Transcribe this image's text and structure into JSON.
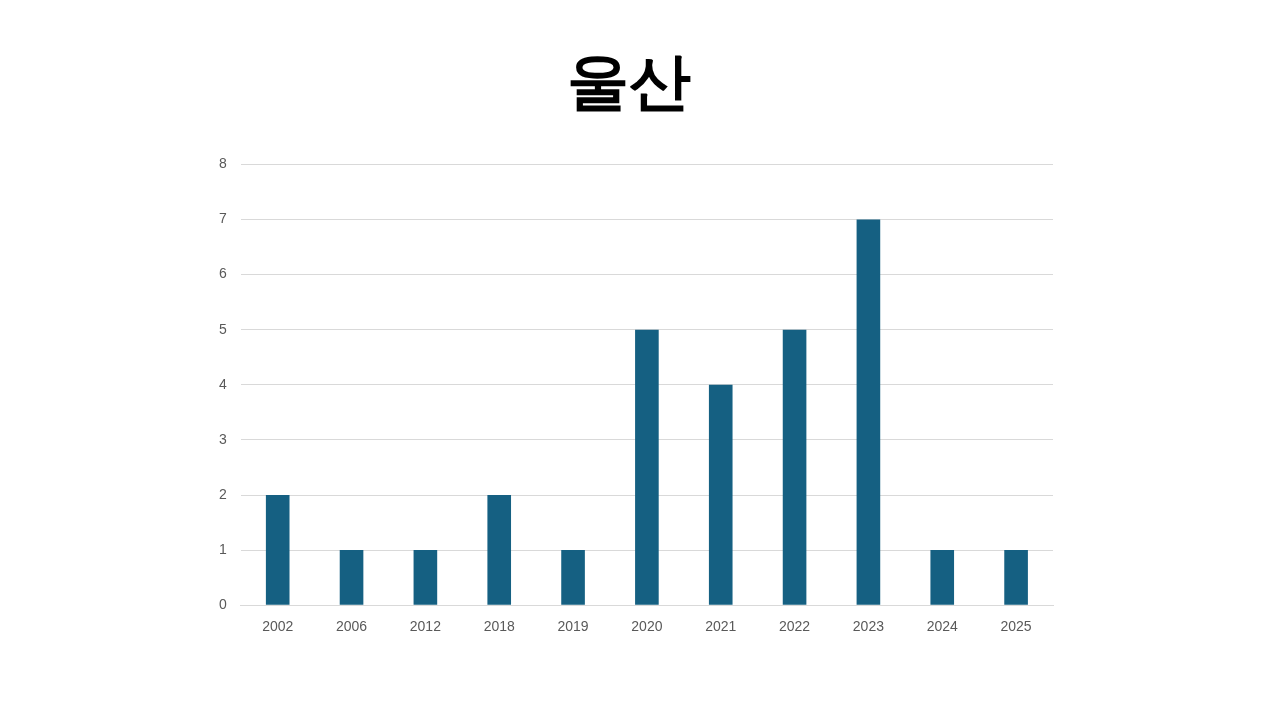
{
  "chart_data": {
    "type": "bar",
    "title": "울산",
    "categories": [
      "2002",
      "2006",
      "2012",
      "2018",
      "2019",
      "2020",
      "2021",
      "2022",
      "2023",
      "2024",
      "2025"
    ],
    "values": [
      2,
      1,
      1,
      2,
      1,
      5,
      4,
      5,
      7,
      1,
      1
    ],
    "color": "#156082",
    "ylim": [
      0,
      8
    ],
    "yticks": [
      0,
      1,
      2,
      3,
      4,
      5,
      6,
      7,
      8
    ],
    "grid": "y",
    "legend": false
  }
}
